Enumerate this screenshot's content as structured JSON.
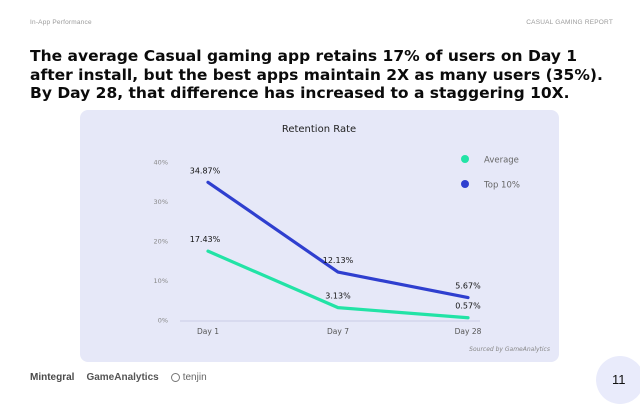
{
  "header": {
    "section": "In-App Performance",
    "report": "CASUAL GAMING REPORT"
  },
  "headline": "The average Casual gaming app retains 17% of users on Day 1 after install, but the best apps maintain 2X as many users (35%). By Day 28, that difference has increased to a staggering 10X.",
  "chart_data": {
    "type": "line",
    "title": "Retention Rate",
    "xlabel": "",
    "ylabel": "",
    "categories": [
      "Day 1",
      "Day 7",
      "Day 28"
    ],
    "ylim": [
      0,
      40
    ],
    "yticks": [
      0,
      10,
      20,
      30,
      40
    ],
    "ytick_labels": [
      "0%",
      "10%",
      "20%",
      "30%",
      "40%"
    ],
    "grid": false,
    "legend_position": "top-right",
    "series": [
      {
        "name": "Average",
        "color": "#22e3a6",
        "values": [
          17.43,
          3.13,
          0.57
        ],
        "labels": [
          "17.43%",
          "3.13%",
          "0.57%"
        ]
      },
      {
        "name": "Top 10%",
        "color": "#2f3fcf",
        "values": [
          34.87,
          12.13,
          5.67
        ],
        "labels": [
          "34.87%",
          "12.13%",
          "5.67%"
        ]
      }
    ],
    "source": "Sourced by GameAnalytics"
  },
  "footer": {
    "logos": [
      "Mintegral",
      "GameAnalytics",
      "tenjin"
    ],
    "page_number": "11"
  },
  "colors": {
    "card_background": "#e6e8f8",
    "axis": "#c9cce6"
  }
}
